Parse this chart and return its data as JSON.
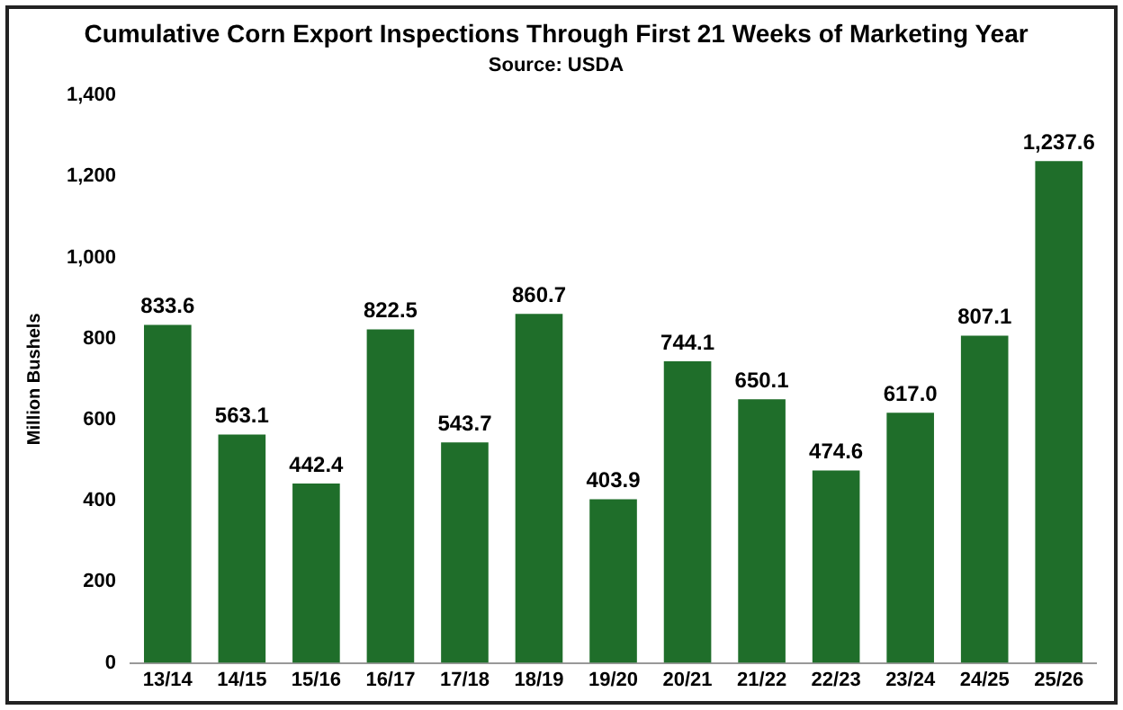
{
  "chart_data": {
    "type": "bar",
    "title": "Cumulative Corn Export Inspections Through First 21 Weeks of Marketing Year",
    "subtitle": "Source: USDA",
    "ylabel": "Million Bushels",
    "categories": [
      "13/14",
      "14/15",
      "15/16",
      "16/17",
      "17/18",
      "18/19",
      "19/20",
      "20/21",
      "21/22",
      "22/23",
      "23/24",
      "24/25",
      "25/26"
    ],
    "values": [
      833.6,
      563.1,
      442.4,
      822.5,
      543.7,
      860.7,
      403.9,
      744.1,
      650.1,
      474.6,
      617.0,
      807.1,
      1237.6
    ],
    "value_labels": [
      "833.6",
      "563.1",
      "442.4",
      "822.5",
      "543.7",
      "860.7",
      "403.9",
      "744.1",
      "650.1",
      "474.6",
      "617.0",
      "807.1",
      "1,237.6"
    ],
    "color": "#1f6e2a",
    "ylim": [
      0,
      1400
    ],
    "yticks": [
      0,
      200,
      400,
      600,
      800,
      {
        "value": 1000,
        "label": "1,000"
      },
      {
        "value": 1200,
        "label": "1,200"
      },
      {
        "value": 1400,
        "label": "1,400"
      }
    ],
    "grid": false,
    "legend": false
  }
}
